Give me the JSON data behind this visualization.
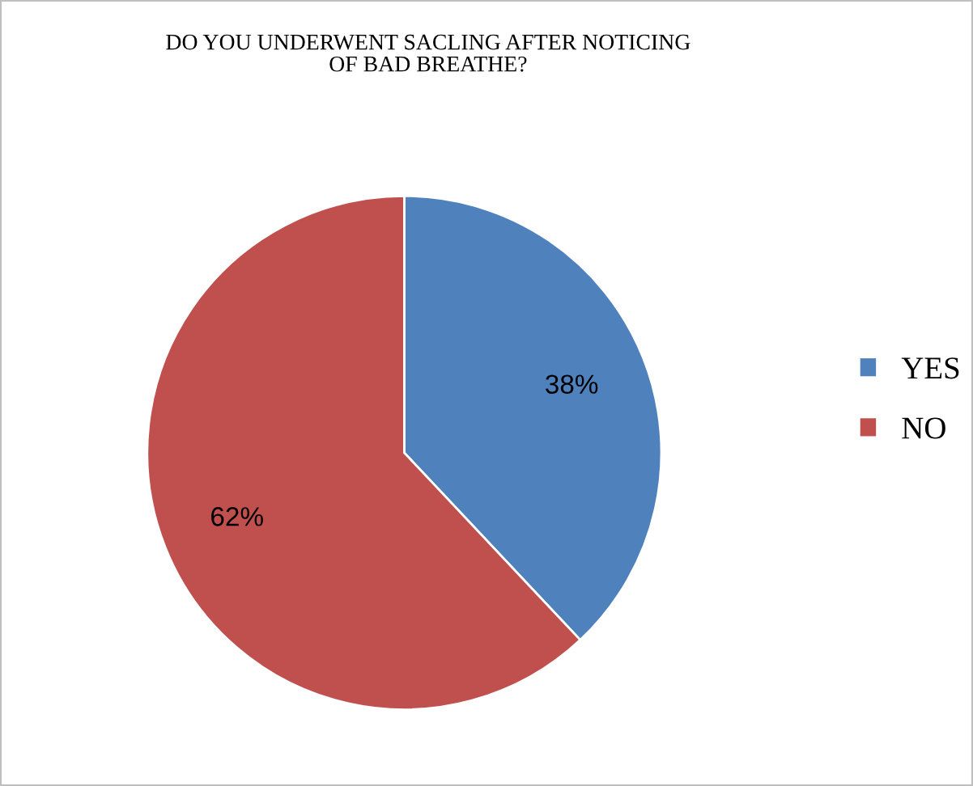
{
  "chart_data": {
    "type": "pie",
    "title": "DO YOU UNDERWENT SACLING AFTER NOTICING\nOF BAD BREATHE?",
    "categories": [
      "YES",
      "NO"
    ],
    "values": [
      38,
      62
    ],
    "colors": [
      "#4f81bd",
      "#c0504d"
    ],
    "value_labels": [
      "38%",
      "62%"
    ],
    "legend": "right"
  }
}
